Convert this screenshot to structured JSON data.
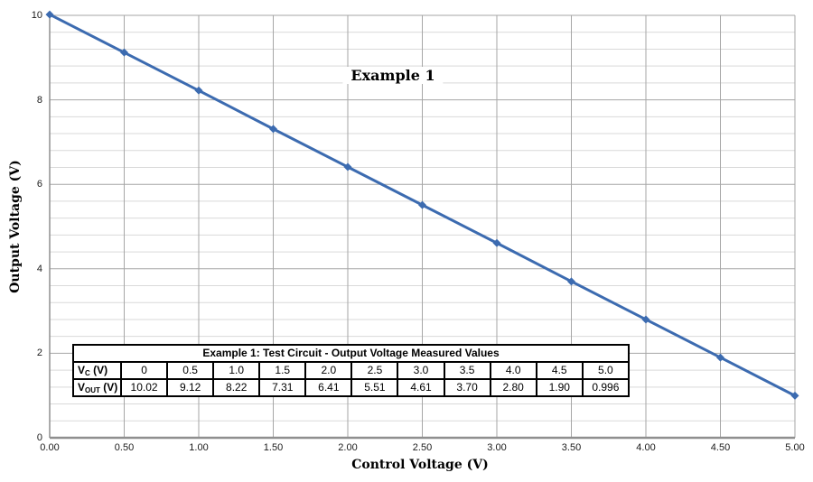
{
  "chart_data": {
    "type": "line",
    "title": "Example 1",
    "xlabel": "Control Voltage (V)",
    "ylabel": "Output Voltage (V)",
    "x": [
      0,
      0.5,
      1.0,
      1.5,
      2.0,
      2.5,
      3.0,
      3.5,
      4.0,
      4.5,
      5.0
    ],
    "y": [
      10.02,
      9.12,
      8.22,
      7.31,
      6.41,
      5.51,
      4.61,
      3.7,
      2.8,
      1.9,
      0.996
    ],
    "xlim": [
      0,
      5
    ],
    "ylim": [
      0,
      10
    ],
    "x_tick_values": [
      0,
      0.5,
      1.0,
      1.5,
      2.0,
      2.5,
      3.0,
      3.5,
      4.0,
      4.5,
      5.0
    ],
    "x_tick_labels": [
      "0.00",
      "0.50",
      "1.00",
      "1.50",
      "2.00",
      "2.50",
      "3.00",
      "3.50",
      "4.00",
      "4.50",
      "5.00"
    ],
    "y_tick_values": [
      0,
      2,
      4,
      6,
      8,
      10
    ],
    "y_tick_labels": [
      "0",
      "2",
      "4",
      "6",
      "8",
      "10"
    ],
    "y_major_step": 2,
    "y_minor_step": 0.4,
    "x_grid_step": 0.5,
    "grid": "major+minor horizontal, major vertical",
    "legend_position": "none",
    "marker": "diamond"
  },
  "colors": {
    "line": "#3C6BB0",
    "minor_grid": "#D9D9D9",
    "major_grid": "#A6A6A6",
    "axis": "#8F8F8F",
    "background": "#FFFFFF",
    "table_border": "#000000"
  },
  "table": {
    "title": "Example 1: Test Circuit - Output Voltage Measured Values",
    "rows": [
      {
        "label_base": "V",
        "label_sub": "C",
        "label_unit": " (V)",
        "values": [
          "0",
          "0.5",
          "1.0",
          "1.5",
          "2.0",
          "2.5",
          "3.0",
          "3.5",
          "4.0",
          "4.5",
          "5.0"
        ]
      },
      {
        "label_base": "V",
        "label_sub": "OUT",
        "label_unit": " (V)",
        "values": [
          "10.02",
          "9.12",
          "8.22",
          "7.31",
          "6.41",
          "5.51",
          "4.61",
          "3.70",
          "2.80",
          "1.90",
          "0.996"
        ]
      }
    ]
  }
}
